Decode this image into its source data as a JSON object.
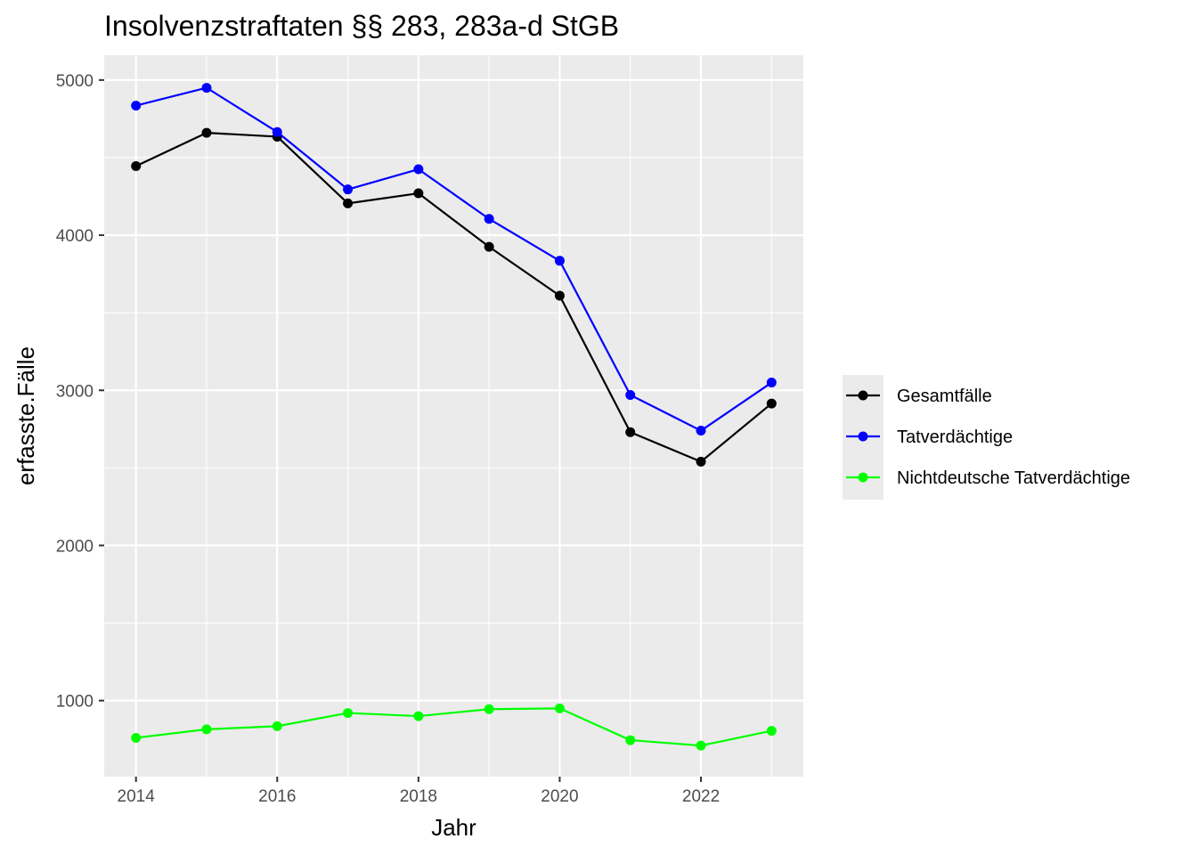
{
  "chart_data": {
    "type": "line",
    "title": "Insolvenzstraftaten §§ 283, 283a-d StGB",
    "xlabel": "Jahr",
    "ylabel": "erfasste.Fälle",
    "xlim": [
      2013.55,
      2023.45
    ],
    "ylim": [
      510,
      5160
    ],
    "x_ticks": [
      2014,
      2016,
      2018,
      2020,
      2022
    ],
    "y_ticks": [
      1000,
      2000,
      3000,
      4000,
      5000
    ],
    "x_tick_labels": [
      "2014",
      "2016",
      "2018",
      "2020",
      "2022"
    ],
    "y_tick_labels": [
      "1000",
      "2000",
      "3000",
      "4000",
      "5000"
    ],
    "grid": true,
    "legend_position": "right",
    "x": [
      2014,
      2015,
      2016,
      2017,
      2018,
      2019,
      2020,
      2021,
      2022,
      2023
    ],
    "series": [
      {
        "name": "Gesamtfälle",
        "color": "#000000",
        "values": [
          4445,
          4660,
          4635,
          4205,
          4270,
          3925,
          3610,
          2730,
          2540,
          2915
        ]
      },
      {
        "name": "Tatverdächtige",
        "color": "#0000ff",
        "values": [
          4835,
          4950,
          4665,
          4295,
          4425,
          4105,
          3835,
          2970,
          2740,
          3050
        ]
      },
      {
        "name": "Nichtdeutsche Tatverdächtige",
        "color": "#00ff00",
        "values": [
          760,
          815,
          835,
          920,
          900,
          945,
          950,
          745,
          710,
          805
        ]
      }
    ]
  }
}
